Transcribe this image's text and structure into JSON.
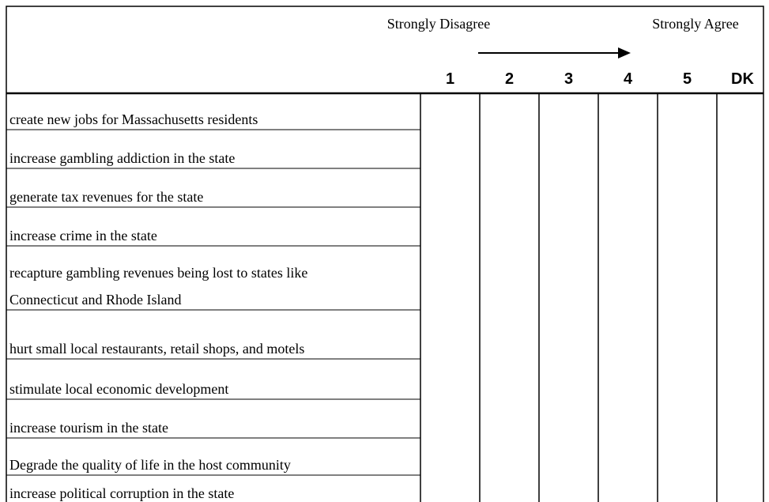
{
  "header": {
    "left_label": "Strongly Disagree",
    "right_label": "Strongly Agree",
    "columns": [
      "1",
      "2",
      "3",
      "4",
      "5",
      "DK"
    ]
  },
  "rows": [
    [
      "create new jobs for Massachusetts residents"
    ],
    [
      "increase gambling addiction in the state"
    ],
    [
      "generate tax revenues for the state"
    ],
    [
      "increase crime in the state"
    ],
    [
      "recapture gambling revenues being lost to states like",
      "Connecticut and Rhode Island"
    ],
    [
      "hurt small local restaurants, retail shops, and motels"
    ],
    [
      "stimulate local economic development"
    ],
    [
      "increase tourism in the state"
    ],
    [
      "Degrade the quality of life in the host community"
    ],
    [
      "increase political corruption in the state"
    ]
  ]
}
